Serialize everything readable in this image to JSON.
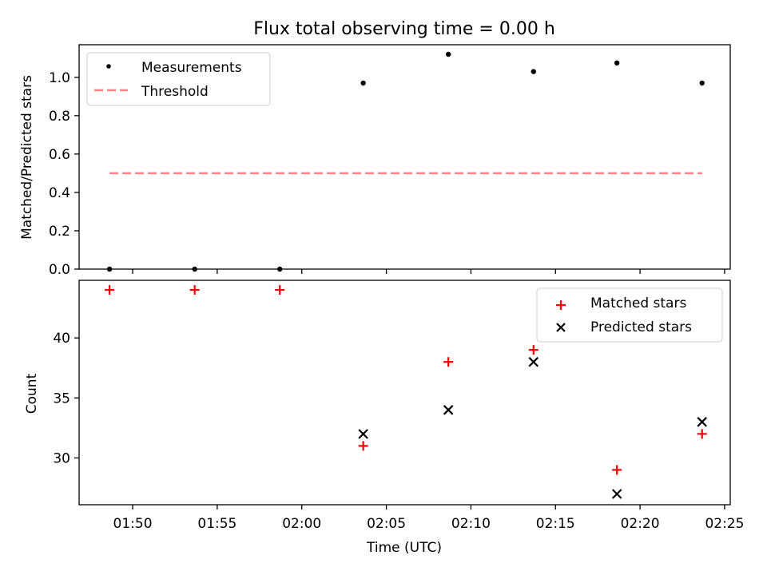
{
  "chart_data": [
    {
      "type": "scatter",
      "title": "Flux total observing time = 0.00 h",
      "xlabel": "",
      "ylabel": "Matched/Predicted stars",
      "ylim": [
        0,
        1.17
      ],
      "yticks": [
        "0.0",
        "0.2",
        "0.4",
        "0.6",
        "0.8",
        "1.0"
      ],
      "legend_position": "top-left",
      "threshold": {
        "name": "Threshold",
        "value": 0.5,
        "color": "#ff8080",
        "style": "dashed"
      },
      "series": [
        {
          "name": "Measurements",
          "marker": "dot",
          "color": "#000000",
          "x": [
            "01:48:38",
            "01:53:40",
            "01:58:42",
            "02:03:38",
            "02:08:40",
            "02:13:42",
            "02:18:38",
            "02:23:40"
          ],
          "values": [
            0.0,
            0.0,
            0.0,
            0.97,
            1.12,
            1.03,
            1.075,
            0.97
          ]
        }
      ]
    },
    {
      "type": "scatter",
      "title": "",
      "xlabel": "Time (UTC)",
      "ylabel": "Count",
      "ylim": [
        26.1,
        44.8
      ],
      "yticks": [
        "30",
        "35",
        "40"
      ],
      "xticks": [
        "01:50",
        "01:55",
        "02:00",
        "02:05",
        "02:10",
        "02:15",
        "02:20",
        "02:25"
      ],
      "xlim": [
        "01:46:50",
        "02:25:20"
      ],
      "legend_position": "top-right",
      "series": [
        {
          "name": "Matched stars",
          "marker": "plus",
          "color": "#ff0000",
          "x": [
            "01:48:38",
            "01:53:40",
            "01:58:42",
            "02:03:38",
            "02:08:40",
            "02:13:42",
            "02:18:38",
            "02:23:40"
          ],
          "values": [
            44,
            44,
            44,
            31,
            38,
            39,
            29,
            32
          ]
        },
        {
          "name": "Predicted stars",
          "marker": "x",
          "color": "#000000",
          "x": [
            "02:03:38",
            "02:08:40",
            "02:13:42",
            "02:18:38",
            "02:23:40"
          ],
          "values": [
            32,
            34,
            38,
            27,
            33
          ]
        }
      ]
    }
  ]
}
